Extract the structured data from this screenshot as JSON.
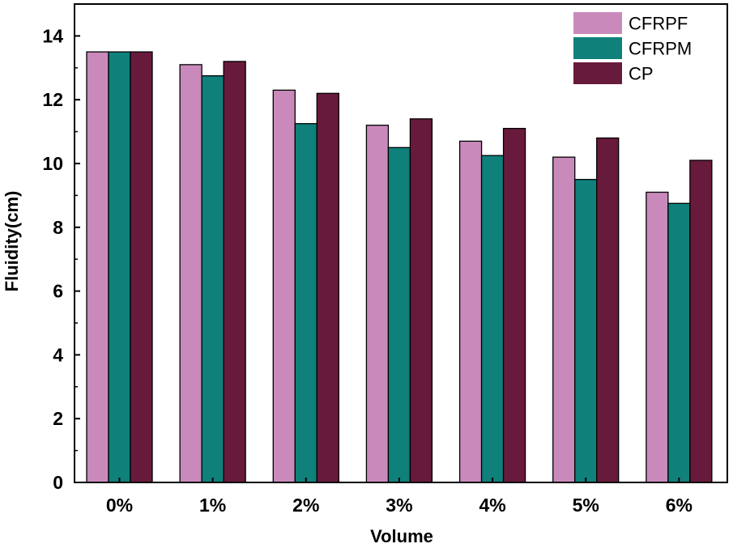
{
  "chart_data": {
    "type": "bar",
    "title": "",
    "xlabel": "Volume",
    "ylabel": "Fluidity(cm)",
    "categories": [
      "0%",
      "1%",
      "2%",
      "3%",
      "4%",
      "5%",
      "6%"
    ],
    "ylim": [
      0,
      15
    ],
    "yticks": [
      0,
      2,
      4,
      6,
      8,
      10,
      12,
      14
    ],
    "legend_position": "top-right",
    "grid": false,
    "series": [
      {
        "name": "CFRPF",
        "color": "#c98abb",
        "values": [
          13.5,
          13.1,
          12.3,
          11.2,
          10.7,
          10.2,
          9.1
        ]
      },
      {
        "name": "CFRPM",
        "color": "#0f807a",
        "values": [
          13.5,
          12.75,
          11.25,
          10.5,
          10.25,
          9.5,
          8.75
        ]
      },
      {
        "name": "CP",
        "color": "#681a3c",
        "values": [
          13.5,
          13.2,
          12.2,
          11.4,
          11.1,
          10.8,
          10.1
        ]
      }
    ]
  }
}
